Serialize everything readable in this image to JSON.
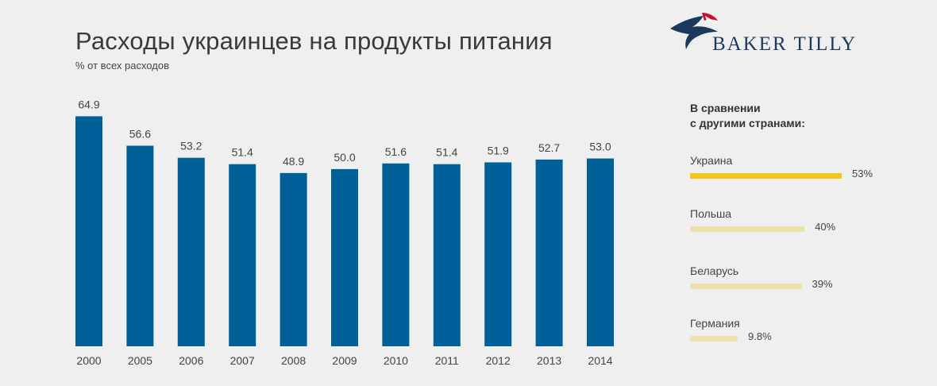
{
  "header": {
    "title": "Расходы украинцев на продукты питания",
    "subtitle": "% от всех расходов"
  },
  "logo": {
    "text": "BAKER TILLY"
  },
  "colors": {
    "bar": "#006198",
    "highlight": "#f3c718",
    "muted": "#f0e0ab",
    "text": "#444444"
  },
  "chart_data": {
    "type": "bar",
    "categories": [
      "2000",
      "2005",
      "2006",
      "2007",
      "2008",
      "2009",
      "2010",
      "2011",
      "2012",
      "2013",
      "2014"
    ],
    "values": [
      64.9,
      56.6,
      53.2,
      51.4,
      48.9,
      50.0,
      51.6,
      51.4,
      51.9,
      52.7,
      53.0
    ],
    "value_labels": [
      "64.9",
      "56.6",
      "53.2",
      "51.4",
      "48.9",
      "50.0",
      "51.6",
      "51.4",
      "51.9",
      "52.7",
      "53.0"
    ],
    "title": "Расходы украинцев на продукты питания",
    "subtitle": "% от всех расходов",
    "ylim": [
      0,
      65
    ],
    "grid": false
  },
  "comparison": {
    "title_line1": "В сравнении",
    "title_line2": "с другими странами:",
    "items": [
      {
        "country": "Украина",
        "value": 53,
        "label": "53%",
        "highlight": true
      },
      {
        "country": "Польша",
        "value": 40,
        "label": "40%",
        "highlight": false
      },
      {
        "country": "Беларусь",
        "value": 39,
        "label": "39%",
        "highlight": false
      },
      {
        "country": "Германия",
        "value": 9.8,
        "label": "9.8%",
        "highlight": false
      }
    ]
  }
}
